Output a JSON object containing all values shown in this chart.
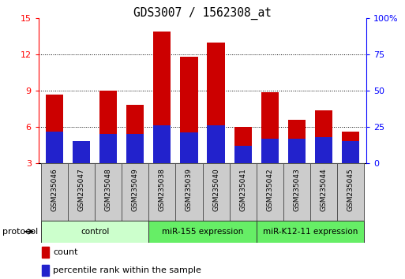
{
  "title": "GDS3007 / 1562308_at",
  "samples": [
    "GSM235046",
    "GSM235047",
    "GSM235048",
    "GSM235049",
    "GSM235038",
    "GSM235039",
    "GSM235040",
    "GSM235041",
    "GSM235042",
    "GSM235043",
    "GSM235044",
    "GSM235045"
  ],
  "count_values": [
    8.7,
    3.3,
    9.0,
    7.8,
    13.9,
    11.8,
    13.0,
    6.0,
    8.9,
    6.6,
    7.4,
    5.6
  ],
  "percentile_raw": [
    22,
    15,
    20,
    20,
    26,
    21,
    26,
    12,
    17,
    17,
    18,
    15
  ],
  "ylim_left": [
    3,
    15
  ],
  "ylim_right": [
    0,
    100
  ],
  "yticks_left": [
    3,
    6,
    9,
    12,
    15
  ],
  "yticks_right": [
    0,
    25,
    50,
    75,
    100
  ],
  "ytick_labels_right": [
    "0",
    "25",
    "50",
    "75",
    "100%"
  ],
  "bar_color": "#cc0000",
  "percentile_color": "#2222cc",
  "bar_width": 0.65,
  "legend_count_label": "count",
  "legend_percentile_label": "percentile rank within the sample",
  "protocol_label": "protocol",
  "group_boundaries": [
    {
      "start": 0,
      "end": 3,
      "label": "control",
      "color": "#ccffcc"
    },
    {
      "start": 4,
      "end": 7,
      "label": "miR-155 expression",
      "color": "#66ee66"
    },
    {
      "start": 8,
      "end": 11,
      "label": "miR-K12-11 expression",
      "color": "#66ee66"
    }
  ]
}
